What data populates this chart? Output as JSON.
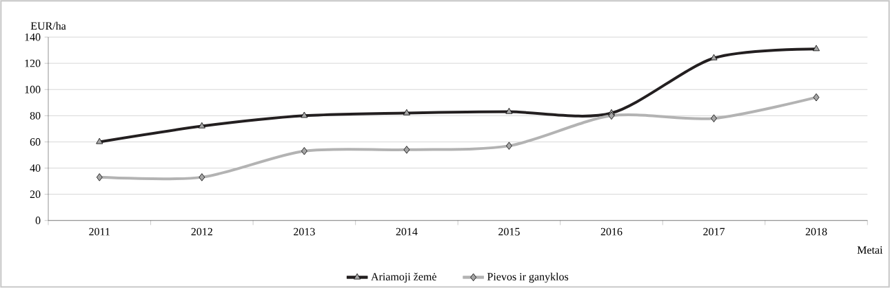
{
  "chart_data": {
    "type": "line",
    "ylabel": "EUR/ha",
    "xlabel": "Metai",
    "categories": [
      "2011",
      "2012",
      "2013",
      "2014",
      "2015",
      "2016",
      "2017",
      "2018"
    ],
    "series": [
      {
        "name": "Ariamoji žemė",
        "color": "#231f20",
        "marker": "triangle",
        "values": [
          60,
          72,
          80,
          82,
          83,
          82,
          124,
          131
        ]
      },
      {
        "name": "Pievos ir ganyklos",
        "color": "#b3b3b3",
        "marker": "diamond",
        "values": [
          33,
          33,
          53,
          54,
          57,
          80,
          78,
          94
        ]
      }
    ],
    "ylim": [
      0,
      140
    ],
    "yticks": [
      0,
      20,
      40,
      60,
      80,
      100,
      120,
      140
    ],
    "grid": "y",
    "legend": "bottom",
    "line_style": "solid"
  }
}
